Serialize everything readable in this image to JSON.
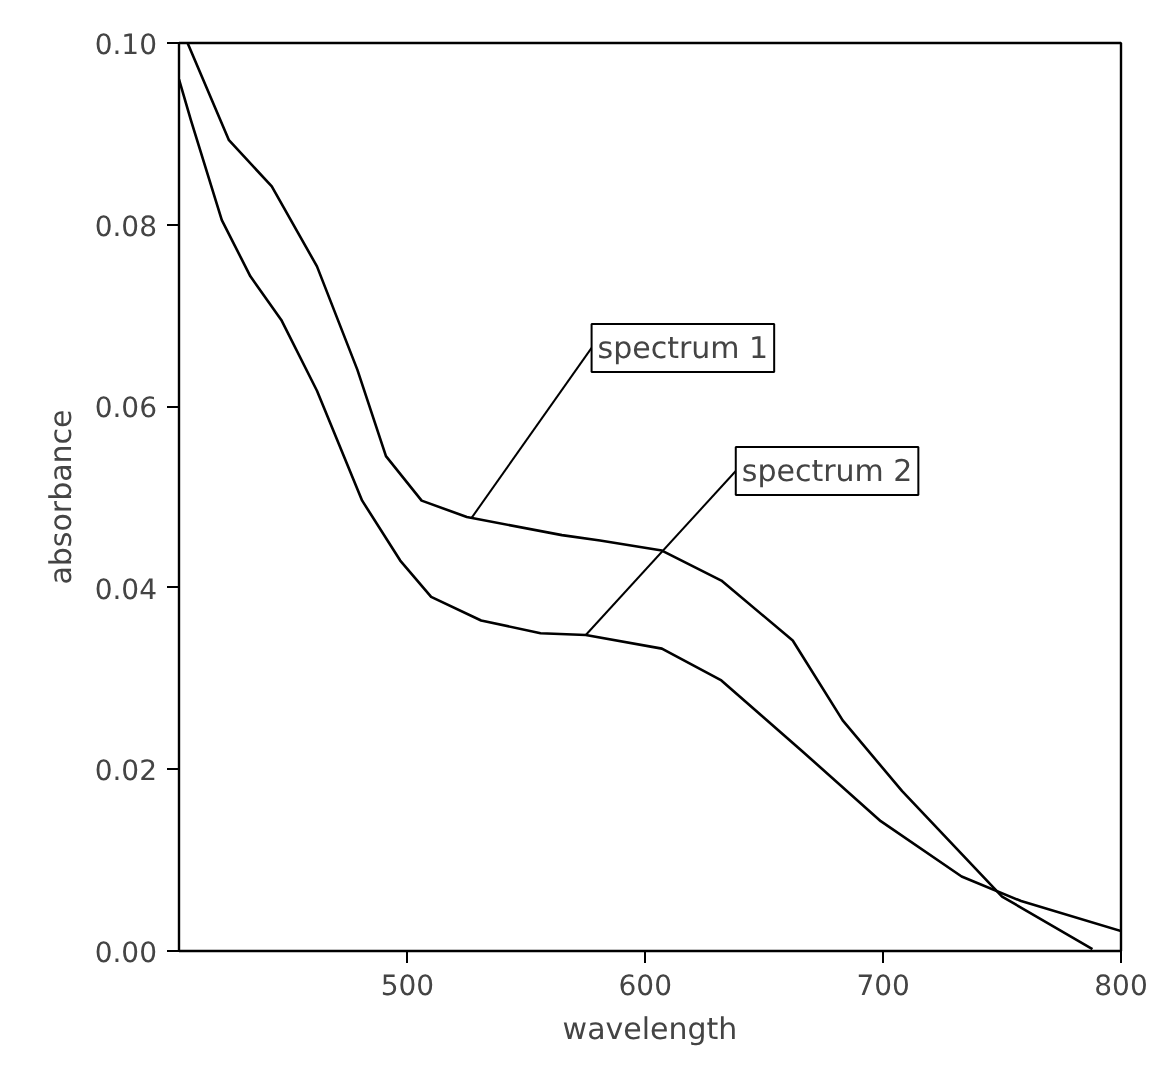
{
  "chart_data": {
    "type": "line",
    "xlabel": "wavelength",
    "ylabel": "absorbance",
    "xlim": [
      404,
      800
    ],
    "ylim": [
      0,
      0.1
    ],
    "xticks": [
      500,
      600,
      700,
      800
    ],
    "yticks": [
      {
        "value": 0,
        "label": "0.00"
      },
      {
        "value": 0.02,
        "label": "0.02"
      },
      {
        "value": 0.04,
        "label": "0.04"
      },
      {
        "value": 0.06,
        "label": "0.06"
      },
      {
        "value": 0.08,
        "label": "0.08"
      },
      {
        "value": 0.1,
        "label": "0.10"
      }
    ],
    "marker": "none",
    "line_style": "solid",
    "series": [
      {
        "color": "#000000",
        "x": [
          407.6,
          425,
          443,
          462,
          479,
          491,
          506,
          525,
          565,
          581,
          607,
          632,
          662,
          683,
          708,
          750,
          788
        ],
        "values": [
          0.1,
          0.0893,
          0.0842,
          0.0754,
          0.064,
          0.0545,
          0.0496,
          0.0478,
          0.0458,
          0.0452,
          0.0441,
          0.0408,
          0.0342,
          0.0254,
          0.0176,
          0.006,
          0.0002
        ]
      },
      {
        "color": "#000000",
        "x": [
          404,
          409,
          422,
          434,
          447,
          462,
          481,
          497,
          510,
          531,
          556,
          575,
          607,
          632,
          666,
          699,
          733,
          758,
          800
        ],
        "values": [
          0.096,
          0.0915,
          0.0805,
          0.0743,
          0.0695,
          0.0617,
          0.0496,
          0.043,
          0.039,
          0.0364,
          0.035,
          0.0348,
          0.0333,
          0.0298,
          0.022,
          0.0143,
          0.0082,
          0.0055,
          0.0022
        ]
      }
    ],
    "annotations": [
      {
        "text": "spectrum 1",
        "x": 527,
        "y": 0.0477
      },
      {
        "text": "spectrum 2",
        "x": 575,
        "y": 0.0348
      }
    ]
  }
}
